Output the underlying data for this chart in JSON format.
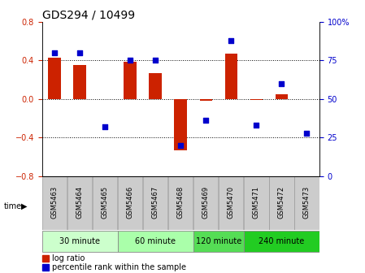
{
  "title": "GDS294 / 10499",
  "samples": [
    "GSM5463",
    "GSM5464",
    "GSM5465",
    "GSM5466",
    "GSM5467",
    "GSM5468",
    "GSM5469",
    "GSM5470",
    "GSM5471",
    "GSM5472",
    "GSM5473"
  ],
  "log_ratio": [
    0.43,
    0.35,
    0.0,
    0.39,
    0.27,
    -0.53,
    -0.02,
    0.47,
    -0.01,
    0.05,
    0.0
  ],
  "percentile_rank": [
    80,
    80,
    32,
    75,
    75,
    20,
    36,
    88,
    33,
    60,
    28
  ],
  "groups": [
    {
      "label": "30 minute",
      "start": 0,
      "end": 2,
      "color": "#ccffcc"
    },
    {
      "label": "60 minute",
      "start": 3,
      "end": 5,
      "color": "#aaffaa"
    },
    {
      "label": "120 minute",
      "start": 6,
      "end": 7,
      "color": "#55dd55"
    },
    {
      "label": "240 minute",
      "start": 8,
      "end": 10,
      "color": "#22cc22"
    }
  ],
  "bar_color": "#cc2200",
  "dot_color": "#0000cc",
  "ylim_left": [
    -0.8,
    0.8
  ],
  "ylim_right": [
    0,
    100
  ],
  "yticks_left": [
    -0.8,
    -0.4,
    0.0,
    0.4,
    0.8
  ],
  "yticks_right": [
    0,
    25,
    50,
    75,
    100
  ],
  "dotted_lines": [
    -0.4,
    0.0,
    0.4
  ],
  "sample_box_color": "#cccccc",
  "sample_box_edge": "#999999",
  "background_color": "#ffffff",
  "title_fontsize": 10,
  "axis_label_fontsize": 7,
  "sample_label_fontsize": 6,
  "group_label_fontsize": 7,
  "legend_fontsize": 7
}
